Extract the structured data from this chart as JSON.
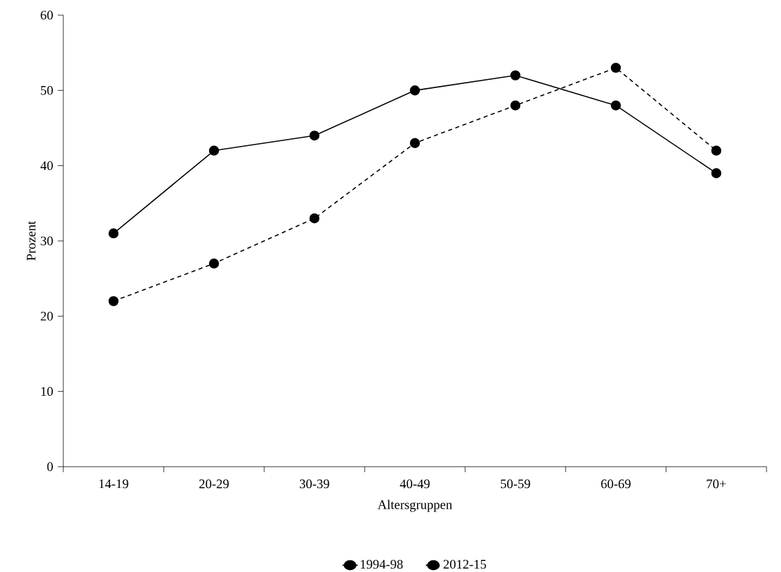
{
  "chart_data": {
    "type": "line",
    "xlabel": "Altersgruppen",
    "ylabel": "Prozent",
    "categories": [
      "14-19",
      "20-29",
      "30-39",
      "40-49",
      "50-59",
      "60-69",
      "70+"
    ],
    "ylim": [
      0,
      60
    ],
    "yticks": [
      0,
      10,
      20,
      30,
      40,
      50,
      60
    ],
    "grid": false,
    "legend": "bottom",
    "marker": "circle",
    "series": [
      {
        "name": "1994-98",
        "color": "#000000",
        "line_style": "solid",
        "values": [
          31,
          42,
          44,
          50,
          52,
          48,
          39
        ]
      },
      {
        "name": "2012-15",
        "color": "#000000",
        "line_style": "dashed",
        "values": [
          22,
          27,
          33,
          43,
          48,
          53,
          42
        ]
      }
    ]
  }
}
